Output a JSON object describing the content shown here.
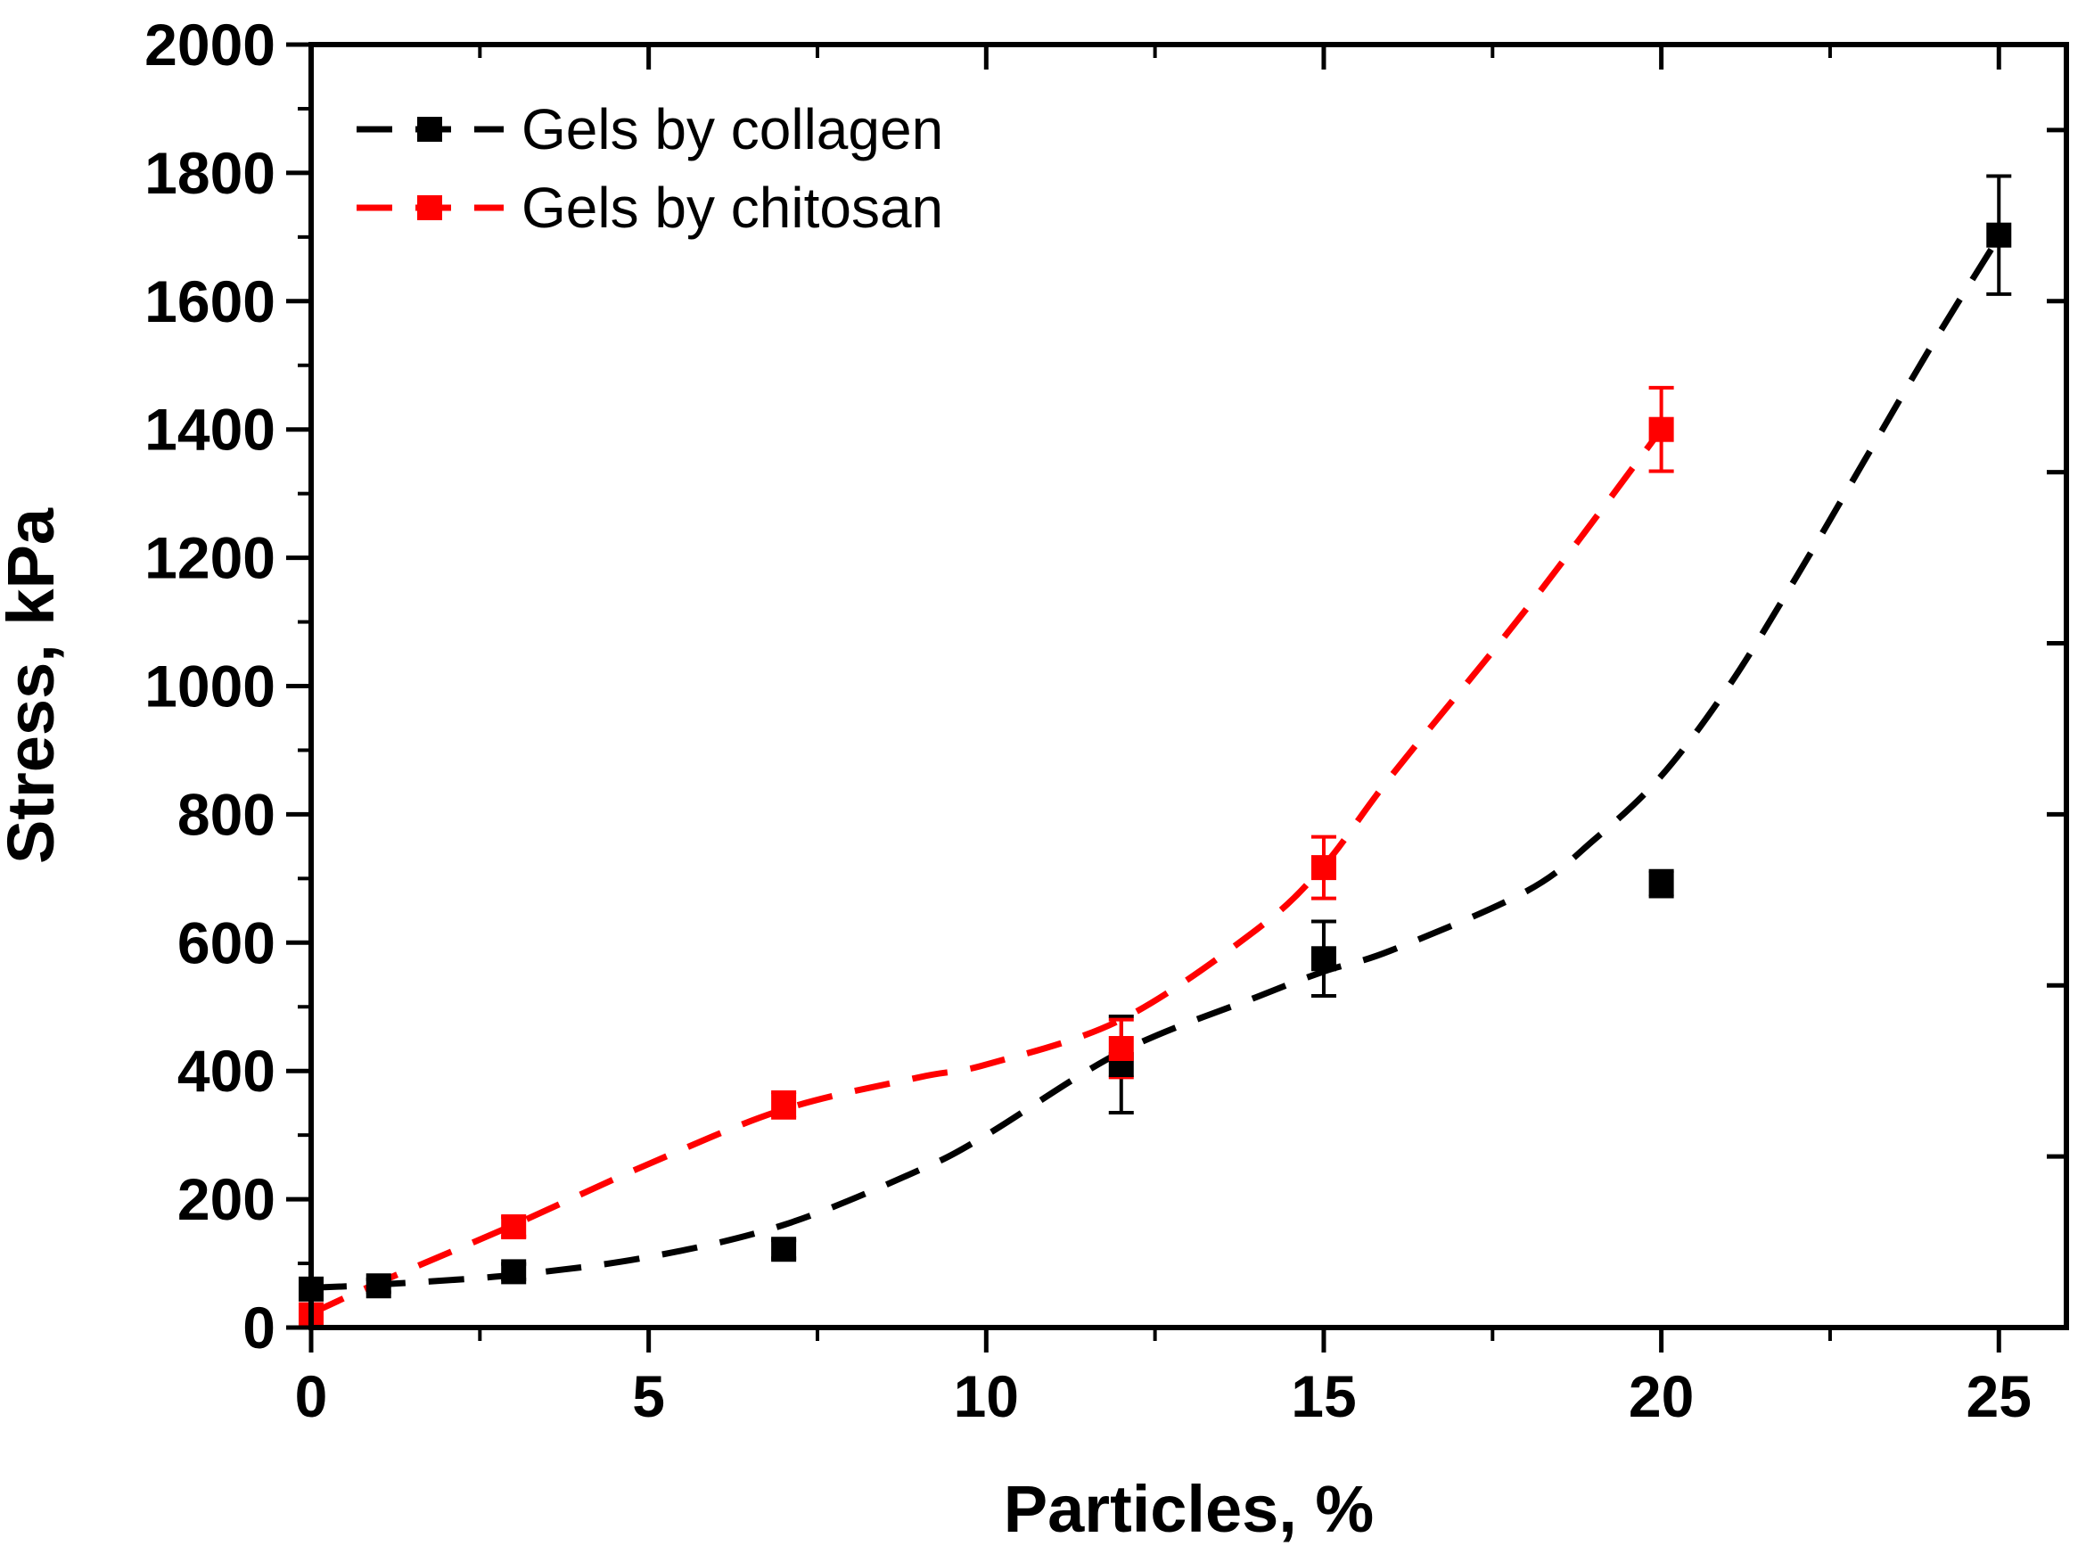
{
  "chart_data": {
    "type": "scatter",
    "title": "",
    "xlabel": "Particles, %",
    "ylabel": "Stress, kPa",
    "xlim": [
      0,
      26
    ],
    "ylim": [
      0,
      2000
    ],
    "x_ticks": [
      0,
      5,
      10,
      15,
      20,
      25
    ],
    "y_ticks": [
      0,
      200,
      400,
      600,
      800,
      1000,
      1200,
      1400,
      1600,
      1800,
      2000
    ],
    "legend_position": "top-left",
    "series": [
      {
        "name": "Gels by collagen",
        "color": "#000000",
        "marker": "square",
        "x": [
          0,
          1,
          3,
          7,
          12,
          15,
          20,
          25
        ],
        "y": [
          60,
          65,
          87,
          122,
          410,
          575,
          692,
          1703
        ],
        "error": [
          8,
          10,
          12,
          14,
          75,
          58,
          20,
          92
        ],
        "fit_x": [
          0,
          1,
          3,
          5,
          7,
          9,
          10,
          12,
          14,
          15,
          16,
          18,
          19,
          20,
          21,
          22,
          23,
          24,
          25
        ],
        "fit_y": [
          62,
          67,
          82,
          110,
          160,
          245,
          300,
          430,
          515,
          555,
          588,
          680,
          760,
          860,
          1000,
          1170,
          1350,
          1530,
          1700
        ]
      },
      {
        "name": "Gels by chitosan",
        "color": "#ff0000",
        "marker": "square",
        "x": [
          0,
          3,
          7,
          12,
          15,
          20
        ],
        "y": [
          20,
          157,
          347,
          435,
          717,
          1400
        ],
        "error": [
          5,
          15,
          20,
          45,
          48,
          65
        ],
        "fit_x": [
          0,
          1,
          3,
          5,
          7,
          9,
          10,
          12,
          14,
          15,
          16,
          18,
          20
        ],
        "fit_y": [
          22,
          70,
          160,
          255,
          340,
          390,
          410,
          480,
          620,
          720,
          860,
          1120,
          1400
        ]
      }
    ]
  }
}
